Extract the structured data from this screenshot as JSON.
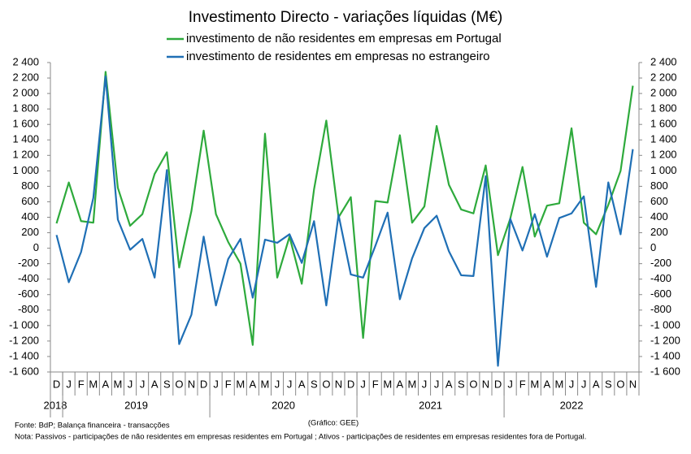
{
  "chart_data": {
    "type": "line",
    "title": "Investimento Directo - variações líquidas (M€)",
    "categories": [
      "D",
      "J",
      "F",
      "M",
      "A",
      "M",
      "J",
      "J",
      "A",
      "S",
      "O",
      "N",
      "D",
      "J",
      "F",
      "M",
      "A",
      "M",
      "J",
      "J",
      "A",
      "S",
      "O",
      "N",
      "D",
      "J",
      "F",
      "M",
      "A",
      "M",
      "J",
      "J",
      "A",
      "S",
      "O",
      "N",
      "D",
      "J",
      "F",
      "M",
      "A",
      "M",
      "J",
      "J",
      "A",
      "S",
      "O",
      "N"
    ],
    "year_groups": [
      {
        "label": "2018",
        "count": 1
      },
      {
        "label": "2019",
        "count": 12
      },
      {
        "label": "2020",
        "count": 12
      },
      {
        "label": "2021",
        "count": 12
      },
      {
        "label": "2022",
        "count": 11
      }
    ],
    "series": [
      {
        "name": "investimento de não residentes em empresas em Portugal",
        "color": "#2eaa3c",
        "values": [
          320,
          850,
          350,
          330,
          2280,
          780,
          290,
          440,
          960,
          1240,
          -250,
          480,
          1520,
          440,
          80,
          -200,
          -1250,
          1480,
          -380,
          150,
          -460,
          760,
          1650,
          400,
          660,
          -1160,
          610,
          590,
          1460,
          330,
          540,
          1580,
          820,
          500,
          450,
          1070,
          -90,
          380,
          1050,
          150,
          550,
          580,
          1550,
          330,
          180,
          560,
          1000,
          2100
        ]
      },
      {
        "name": "investimento de residentes em empresas no estrangeiro",
        "color": "#1f6fb5",
        "values": [
          170,
          -440,
          -50,
          650,
          2220,
          370,
          -20,
          120,
          -380,
          1010,
          -1240,
          -860,
          150,
          -740,
          -140,
          120,
          -640,
          110,
          70,
          180,
          -190,
          350,
          -740,
          430,
          -340,
          -380,
          30,
          460,
          -660,
          -130,
          260,
          420,
          -40,
          -350,
          -360,
          930,
          -1520,
          380,
          -30,
          440,
          -110,
          390,
          450,
          670,
          -500,
          850,
          180,
          1280
        ]
      }
    ],
    "ylim": [
      -1600,
      2400
    ],
    "yticks": [
      {
        "value": -1600,
        "label": "-1 600"
      },
      {
        "value": -1400,
        "label": "-1 400"
      },
      {
        "value": -1200,
        "label": "-1 200"
      },
      {
        "value": -1000,
        "label": "-1 000"
      },
      -800,
      -600,
      -400,
      -200,
      0,
      200,
      400,
      600,
      800,
      {
        "value": 1000,
        "label": "1 000"
      },
      {
        "value": 1200,
        "label": "1 200"
      },
      {
        "value": 1400,
        "label": "1 400"
      },
      {
        "value": 1600,
        "label": "1 600"
      },
      {
        "value": 1800,
        "label": "1 800"
      },
      {
        "value": 2000,
        "label": "2 000"
      },
      {
        "value": 2200,
        "label": "2 200"
      },
      {
        "value": 2400,
        "label": "2 400"
      }
    ],
    "y2lim": [
      -1600,
      2400
    ],
    "y2ticks": [
      {
        "value": -1600,
        "label": "-1 600"
      },
      {
        "value": -1400,
        "label": "-1 400"
      },
      {
        "value": -1200,
        "label": "-1 200"
      },
      {
        "value": -1000,
        "label": "-1 000"
      },
      -800,
      -600,
      -400,
      -200,
      0,
      200,
      400,
      600,
      800,
      {
        "value": 1000,
        "label": "1 000"
      },
      {
        "value": 1200,
        "label": "1 200"
      },
      {
        "value": 1400,
        "label": "1 400"
      },
      {
        "value": 1600,
        "label": "1 600"
      },
      {
        "value": 1800,
        "label": "1 800"
      },
      {
        "value": 2000,
        "label": "2 000"
      },
      {
        "value": 2200,
        "label": "2 200"
      },
      {
        "value": 2400,
        "label": "2 400"
      }
    ],
    "grid": false,
    "source": "Fonte: BdP; Balança financeira - transacções",
    "credit": "(Gráfico: GEE)",
    "note": "Nota: Passivos - participações de não residentes em empresas residentes em Portugal ; Ativos - participações de residentes em empresas residentes fora de Portugal."
  }
}
